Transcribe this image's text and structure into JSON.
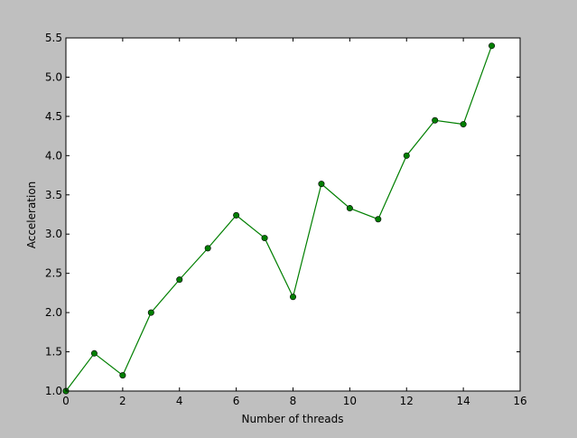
{
  "chart_data": {
    "type": "line",
    "title": "",
    "xlabel": "Number of threads",
    "ylabel": "Acceleration",
    "xlim": [
      0,
      16
    ],
    "ylim": [
      1.0,
      5.5
    ],
    "x_ticks": [
      0,
      2,
      4,
      6,
      8,
      10,
      12,
      14,
      16
    ],
    "x_tick_labels": [
      "0",
      "2",
      "4",
      "6",
      "8",
      "10",
      "12",
      "14",
      "16"
    ],
    "y_ticks": [
      1.0,
      1.5,
      2.0,
      2.5,
      3.0,
      3.5,
      4.0,
      4.5,
      5.0,
      5.5
    ],
    "y_tick_labels": [
      "1.0",
      "1.5",
      "2.0",
      "2.5",
      "3.0",
      "3.5",
      "4.0",
      "4.5",
      "5.0",
      "5.5"
    ],
    "grid": false,
    "legend": "none",
    "series": [
      {
        "color": "#007f00",
        "marker": "circle",
        "x": [
          0,
          1,
          2,
          3,
          4,
          5,
          6,
          7,
          8,
          9,
          10,
          11,
          12,
          13,
          14,
          15
        ],
        "y": [
          1.0,
          1.48,
          1.2,
          2.0,
          2.42,
          2.82,
          3.24,
          2.95,
          2.2,
          3.64,
          3.33,
          3.19,
          4.0,
          4.45,
          4.4,
          5.4
        ]
      }
    ]
  }
}
